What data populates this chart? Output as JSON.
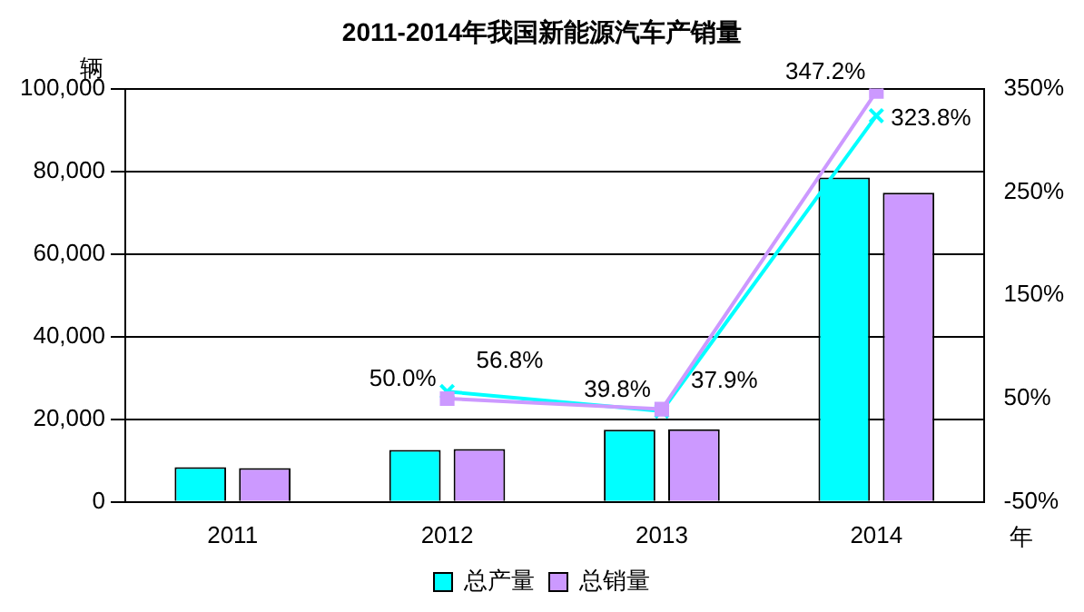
{
  "chart_data": {
    "type": "bar",
    "title": "2011-2014年我国新能源汽车产销量",
    "ylabel": "辆",
    "xlabel": "年",
    "categories": [
      "2011",
      "2012",
      "2013",
      "2014"
    ],
    "series": [
      {
        "name": "总产量",
        "color": "#00ffff",
        "values": [
          8400,
          12600,
          17500,
          78500
        ]
      },
      {
        "name": "总销量",
        "color": "#cc99ff",
        "values": [
          8200,
          12800,
          17600,
          74800
        ]
      },
      {
        "type": "line",
        "axis": "y2",
        "color": "#cc99ff",
        "marker": "square",
        "values": [
          null,
          50.0,
          39.8,
          347.2
        ],
        "value_labels": [
          null,
          "50.0%",
          "39.8%",
          "347.2%"
        ]
      },
      {
        "type": "line",
        "axis": "y2",
        "color": "#00ffff",
        "marker": "cross",
        "values": [
          null,
          56.8,
          37.9,
          323.8
        ],
        "value_labels": [
          null,
          "56.8%",
          "37.9%",
          "323.8%"
        ]
      }
    ],
    "ylim": [
      0,
      100000
    ],
    "yticks": [
      {
        "value": 0,
        "label": "0"
      },
      {
        "value": 20000,
        "label": "20,000"
      },
      {
        "value": 40000,
        "label": "40,000"
      },
      {
        "value": 60000,
        "label": "60,000"
      },
      {
        "value": 80000,
        "label": "80,000"
      },
      {
        "value": 100000,
        "label": "100,000"
      }
    ],
    "y2lim": [
      -50,
      350
    ],
    "y2ticks": [
      {
        "value": -50,
        "label": "-50%"
      },
      {
        "value": 50,
        "label": "50%"
      },
      {
        "value": 150,
        "label": "150%"
      },
      {
        "value": 250,
        "label": "250%"
      },
      {
        "value": 350,
        "label": "350%"
      }
    ],
    "grid": "y",
    "legend": "bottom"
  }
}
